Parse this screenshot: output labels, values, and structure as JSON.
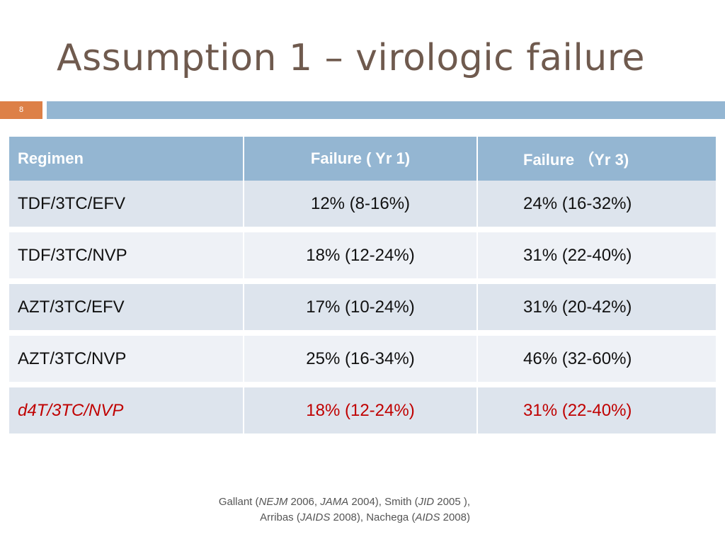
{
  "title": "Assumption 1 – virologic failure",
  "slide_number": "8",
  "colors": {
    "accent_orange": "#dd8047",
    "accent_blue": "#94b6d2",
    "highlight_red": "#c00000"
  },
  "table": {
    "headers": [
      "Regimen",
      "Failure (  Yr 1)",
      "Failure （Yr 3)"
    ],
    "rows": [
      [
        "TDF/3TC/EFV",
        "12% (8-16%)",
        "24% (16-32%)"
      ],
      [
        "TDF/3TC/NVP",
        "18% (12-24%)",
        "31% (22-40%)"
      ],
      [
        "AZT/3TC/EFV",
        "17% (10-24%)",
        "31% (20-42%)"
      ],
      [
        "AZT/3TC/NVP",
        "25% (16-34%)",
        "46% (32-60%)"
      ],
      [
        "d4T/3TC/NVP",
        "18% (12-24%)",
        "31% (22-40%)"
      ]
    ]
  },
  "citation": {
    "line1": {
      "a": "Gallant (",
      "b": "NEJM",
      "c": " 2006, ",
      "d": "JAMA",
      "e": " 2004), Smith (",
      "f": "JID",
      "g": " 2005 ),"
    },
    "line2": {
      "a": "Arribas (",
      "b": "JAIDS",
      "c": " 2008), Nachega (",
      "d": "AIDS",
      "e": " 2008)"
    }
  }
}
